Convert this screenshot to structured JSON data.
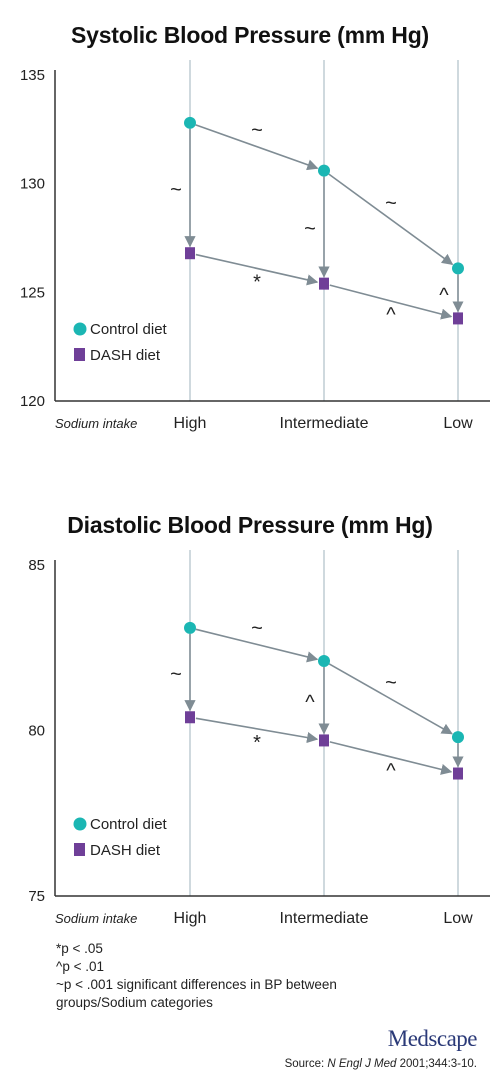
{
  "charts": [
    {
      "title": "Systolic Blood Pressure (mm Hg)",
      "x_label": "Sodium intake",
      "categories": [
        "High",
        "Intermediate",
        "Low"
      ],
      "y_ticks": [
        "135",
        "130",
        "125",
        "120"
      ],
      "legend": [
        "Control diet",
        "DASH diet"
      ],
      "annotations": {
        "control_segments": [
          "~",
          "~"
        ],
        "dash_segments": [
          "*",
          "^"
        ],
        "vertical": [
          "~",
          "~",
          "^"
        ]
      }
    },
    {
      "title": "Diastolic Blood Pressure (mm Hg)",
      "x_label": "Sodium intake",
      "categories": [
        "High",
        "Intermediate",
        "Low"
      ],
      "y_ticks": [
        "85",
        "80",
        "75"
      ],
      "legend": [
        "Control diet",
        "DASH diet"
      ],
      "annotations": {
        "control_segments": [
          "~",
          "~"
        ],
        "dash_segments": [
          "*",
          "^"
        ],
        "vertical": [
          "~",
          "^",
          ""
        ]
      }
    }
  ],
  "footnotes": [
    "*p < .05",
    "^p < .01",
    "~p < .001 significant differences in BP between groups/Sodium categories"
  ],
  "logo": "Medscape",
  "source": {
    "prefix": "Source: ",
    "journal": "N Engl J Med",
    "citation": " 2001;344:3-10."
  },
  "colors": {
    "control": "#1bb6b3",
    "dash": "#6f3f98",
    "arrow": "#7f8c94",
    "gridline": "#9fb3bd",
    "axis": "#333333"
  },
  "chart_data": [
    {
      "type": "line",
      "title": "Systolic Blood Pressure (mm Hg)",
      "xlabel": "Sodium intake",
      "ylabel": "",
      "categories": [
        "High",
        "Intermediate",
        "Low"
      ],
      "series": [
        {
          "name": "Control diet",
          "values": [
            132.8,
            130.6,
            126.1
          ],
          "marker": "circle"
        },
        {
          "name": "DASH diet",
          "values": [
            126.8,
            125.4,
            123.8
          ],
          "marker": "square"
        }
      ],
      "ylim": [
        120,
        135
      ],
      "yticks": [
        120,
        125,
        130,
        135
      ],
      "grid": "vertical lines at categories",
      "legend_position": "lower-left"
    },
    {
      "type": "line",
      "title": "Diastolic Blood Pressure (mm Hg)",
      "xlabel": "Sodium intake",
      "ylabel": "",
      "categories": [
        "High",
        "Intermediate",
        "Low"
      ],
      "series": [
        {
          "name": "Control diet",
          "values": [
            83.1,
            82.1,
            79.8
          ],
          "marker": "circle"
        },
        {
          "name": "DASH diet",
          "values": [
            80.4,
            79.7,
            78.7
          ],
          "marker": "square"
        }
      ],
      "ylim": [
        75,
        85
      ],
      "yticks": [
        75,
        80,
        85
      ],
      "grid": "vertical lines at categories",
      "legend_position": "lower-left"
    }
  ]
}
